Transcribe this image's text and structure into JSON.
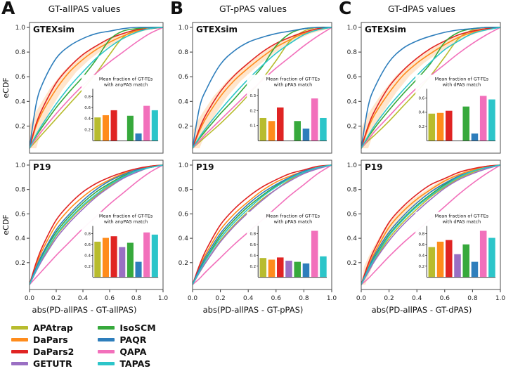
{
  "chart_data": {
    "type": "line",
    "description": "eCDF curves with inset bar charts, 3 panels x 2 datasets",
    "ylabel": "eCDF",
    "y_ticks": [
      0.2,
      0.4,
      0.6,
      0.8,
      1.0
    ],
    "x_ticks": [
      0.0,
      0.2,
      0.4,
      0.6,
      0.8,
      1.0
    ],
    "x_grid": [
      0,
      0.05,
      0.1,
      0.2,
      0.3,
      0.4,
      0.5,
      0.6,
      0.7,
      0.8,
      0.9,
      1.0
    ],
    "methods": [
      "APAtrap",
      "DaPars",
      "DaPars2",
      "GETUTR",
      "IsoSCM",
      "PAQR",
      "QAPA",
      "TAPAS"
    ],
    "colors": {
      "APAtrap": "#b8bc2e",
      "DaPars": "#ff8c1c",
      "DaPars2": "#e02423",
      "GETUTR": "#9a6fc3",
      "IsoSCM": "#37a93c",
      "PAQR": "#2e7ebc",
      "QAPA": "#f270bb",
      "TAPAS": "#2cc5c9"
    },
    "panels": [
      {
        "letter": "A",
        "title": "GT-allPAS values",
        "xlabel": "abs(PD-allPAS - GT-allPAS)",
        "subplots": [
          {
            "dataset": "GTEXsim",
            "inset": {
              "type": "bar",
              "title": [
                "Mean fraction of GT-TEs",
                "with anyPAS match"
              ],
              "ylim": [
                0,
                0.9
              ],
              "yticks": [
                0.2,
                0.4,
                0.6,
                0.8
              ],
              "values": [
                0.42,
                0.46,
                0.55,
                null,
                0.45,
                0.13,
                0.63,
                0.55
              ]
            },
            "bands": {
              "DaPars": 0.05
            },
            "series": {
              "APAtrap": [
                0.02,
                0.08,
                0.14,
                0.26,
                0.38,
                0.5,
                0.63,
                0.78,
                0.92,
                0.98,
                1,
                1
              ],
              "DaPars": [
                0.02,
                0.2,
                0.32,
                0.5,
                0.64,
                0.74,
                0.82,
                0.88,
                0.93,
                0.97,
                0.99,
                1
              ],
              "DaPars2": [
                0.02,
                0.22,
                0.35,
                0.55,
                0.68,
                0.78,
                0.85,
                0.91,
                0.95,
                0.98,
                0.99,
                1
              ],
              "IsoSCM": [
                0.02,
                0.12,
                0.2,
                0.35,
                0.48,
                0.6,
                0.74,
                0.9,
                0.97,
                0.99,
                1,
                1
              ],
              "PAQR": [
                0.02,
                0.38,
                0.55,
                0.75,
                0.85,
                0.91,
                0.95,
                0.97,
                0.99,
                1,
                1,
                1
              ],
              "QAPA": [
                0.02,
                0.1,
                0.17,
                0.3,
                0.42,
                0.53,
                0.63,
                0.72,
                0.8,
                0.88,
                0.95,
                1
              ],
              "TAPAS": [
                0.02,
                0.13,
                0.22,
                0.38,
                0.52,
                0.64,
                0.75,
                0.84,
                0.91,
                0.96,
                0.99,
                1
              ]
            }
          },
          {
            "dataset": "P19",
            "inset": {
              "type": "bar",
              "title": [
                "Mean fraction of GT-TEs",
                "with anyPAS match"
              ],
              "ylim": [
                0,
                0.9
              ],
              "yticks": [
                0.2,
                0.4,
                0.6,
                0.8
              ],
              "values": [
                0.65,
                0.72,
                0.75,
                0.55,
                0.63,
                0.28,
                0.82,
                0.78
              ]
            },
            "bands": {},
            "series": {
              "APAtrap": [
                0.02,
                0.14,
                0.24,
                0.42,
                0.55,
                0.66,
                0.75,
                0.83,
                0.9,
                0.95,
                0.98,
                1
              ],
              "DaPars": [
                0.02,
                0.18,
                0.31,
                0.51,
                0.64,
                0.74,
                0.82,
                0.88,
                0.93,
                0.96,
                0.99,
                1
              ],
              "DaPars2": [
                0.02,
                0.2,
                0.34,
                0.55,
                0.68,
                0.78,
                0.85,
                0.9,
                0.94,
                0.97,
                0.99,
                1
              ],
              "GETUTR": [
                0.02,
                0.13,
                0.23,
                0.4,
                0.53,
                0.64,
                0.74,
                0.82,
                0.89,
                0.94,
                0.98,
                1
              ],
              "IsoSCM": [
                0.02,
                0.15,
                0.27,
                0.45,
                0.58,
                0.69,
                0.78,
                0.85,
                0.91,
                0.95,
                0.98,
                1
              ],
              "PAQR": [
                0.02,
                0.16,
                0.28,
                0.47,
                0.6,
                0.71,
                0.8,
                0.87,
                0.92,
                0.96,
                0.98,
                1
              ],
              "QAPA": [
                0.02,
                0.08,
                0.14,
                0.26,
                0.37,
                0.48,
                0.58,
                0.68,
                0.77,
                0.86,
                0.94,
                1
              ],
              "TAPAS": [
                0.02,
                0.14,
                0.25,
                0.43,
                0.56,
                0.67,
                0.76,
                0.84,
                0.9,
                0.95,
                0.98,
                1
              ]
            }
          }
        ]
      },
      {
        "letter": "B",
        "title": "GT-pPAS values",
        "xlabel": "abs(PD-allPAS - GT-pPAS)",
        "subplots": [
          {
            "dataset": "GTEXsim",
            "inset": {
              "type": "bar",
              "title": [
                "Mean fraction of GT-TEs",
                "with pPAS match"
              ],
              "ylim": [
                0,
                0.33
              ],
              "yticks": [
                0.1,
                0.2,
                0.3
              ],
              "values": [
                0.15,
                0.13,
                0.22,
                null,
                0.13,
                0.08,
                0.28,
                0.15
              ]
            },
            "bands": {
              "DaPars": 0.05
            },
            "series": {
              "APAtrap": [
                0.02,
                0.07,
                0.12,
                0.22,
                0.33,
                0.45,
                0.58,
                0.73,
                0.89,
                0.97,
                1,
                1
              ],
              "DaPars": [
                0.02,
                0.16,
                0.27,
                0.44,
                0.57,
                0.67,
                0.76,
                0.84,
                0.9,
                0.95,
                0.98,
                1
              ],
              "DaPars2": [
                0.02,
                0.18,
                0.3,
                0.48,
                0.61,
                0.71,
                0.8,
                0.87,
                0.92,
                0.96,
                0.99,
                1
              ],
              "IsoSCM": [
                0.02,
                0.1,
                0.17,
                0.3,
                0.42,
                0.55,
                0.68,
                0.85,
                0.95,
                0.99,
                1,
                1
              ],
              "PAQR": [
                0.02,
                0.35,
                0.5,
                0.7,
                0.81,
                0.88,
                0.92,
                0.95,
                0.97,
                0.99,
                1,
                1
              ],
              "QAPA": [
                0.02,
                0.08,
                0.14,
                0.25,
                0.36,
                0.47,
                0.57,
                0.67,
                0.76,
                0.85,
                0.93,
                1
              ],
              "TAPAS": [
                0.02,
                0.11,
                0.19,
                0.33,
                0.46,
                0.58,
                0.69,
                0.79,
                0.87,
                0.94,
                0.98,
                1
              ]
            }
          },
          {
            "dataset": "P19",
            "inset": {
              "type": "bar",
              "title": [
                "Mean fraction of GT-TEs",
                "with pPAS match"
              ],
              "ylim": [
                0,
                0.9
              ],
              "yticks": [
                0.2,
                0.4,
                0.6,
                0.8
              ],
              "values": [
                0.35,
                0.32,
                0.36,
                0.3,
                0.28,
                0.25,
                0.85,
                0.38
              ]
            },
            "bands": {},
            "series": {
              "APAtrap": [
                0.02,
                0.12,
                0.21,
                0.38,
                0.51,
                0.62,
                0.72,
                0.8,
                0.88,
                0.94,
                0.98,
                1
              ],
              "DaPars": [
                0.02,
                0.16,
                0.28,
                0.47,
                0.6,
                0.7,
                0.79,
                0.86,
                0.91,
                0.95,
                0.98,
                1
              ],
              "DaPars2": [
                0.02,
                0.18,
                0.31,
                0.51,
                0.64,
                0.74,
                0.82,
                0.88,
                0.93,
                0.96,
                0.99,
                1
              ],
              "GETUTR": [
                0.02,
                0.12,
                0.21,
                0.37,
                0.5,
                0.61,
                0.71,
                0.8,
                0.87,
                0.93,
                0.97,
                1
              ],
              "IsoSCM": [
                0.02,
                0.14,
                0.24,
                0.42,
                0.55,
                0.66,
                0.75,
                0.83,
                0.89,
                0.94,
                0.98,
                1
              ],
              "PAQR": [
                0.02,
                0.15,
                0.26,
                0.44,
                0.57,
                0.68,
                0.77,
                0.84,
                0.9,
                0.95,
                0.98,
                1
              ],
              "QAPA": [
                0.02,
                0.07,
                0.13,
                0.24,
                0.35,
                0.45,
                0.55,
                0.65,
                0.75,
                0.84,
                0.93,
                1
              ],
              "TAPAS": [
                0.02,
                0.13,
                0.23,
                0.4,
                0.53,
                0.64,
                0.74,
                0.82,
                0.89,
                0.94,
                0.98,
                1
              ]
            }
          }
        ]
      },
      {
        "letter": "C",
        "title": "GT-dPAS values",
        "xlabel": "abs(PD-allPAS - GT-dPAS)",
        "subplots": [
          {
            "dataset": "GTEXsim",
            "inset": {
              "type": "bar",
              "title": [
                "Mean fraction of GT-TEs",
                "with dPAS match"
              ],
              "ylim": [
                0,
                0.7
              ],
              "yticks": [
                0.2,
                0.4,
                0.6
              ],
              "values": [
                0.38,
                0.39,
                0.42,
                null,
                0.48,
                0.1,
                0.63,
                0.58
              ]
            },
            "bands": {
              "DaPars": 0.05
            },
            "series": {
              "APAtrap": [
                0.02,
                0.08,
                0.13,
                0.24,
                0.36,
                0.48,
                0.61,
                0.76,
                0.91,
                0.98,
                1,
                1
              ],
              "DaPars": [
                0.02,
                0.18,
                0.3,
                0.47,
                0.61,
                0.71,
                0.79,
                0.86,
                0.92,
                0.96,
                0.99,
                1
              ],
              "DaPars2": [
                0.02,
                0.2,
                0.33,
                0.52,
                0.65,
                0.75,
                0.83,
                0.89,
                0.94,
                0.97,
                0.99,
                1
              ],
              "IsoSCM": [
                0.02,
                0.11,
                0.19,
                0.33,
                0.46,
                0.58,
                0.71,
                0.88,
                0.96,
                0.99,
                1,
                1
              ],
              "PAQR": [
                0.02,
                0.36,
                0.52,
                0.72,
                0.83,
                0.89,
                0.93,
                0.96,
                0.98,
                0.99,
                1,
                1
              ],
              "QAPA": [
                0.02,
                0.09,
                0.16,
                0.28,
                0.4,
                0.51,
                0.61,
                0.7,
                0.79,
                0.87,
                0.94,
                1
              ],
              "TAPAS": [
                0.02,
                0.12,
                0.21,
                0.36,
                0.49,
                0.61,
                0.72,
                0.82,
                0.89,
                0.95,
                0.98,
                1
              ]
            }
          },
          {
            "dataset": "P19",
            "inset": {
              "type": "bar",
              "title": [
                "Mean fraction of GT-TEs",
                "with dPAS match"
              ],
              "ylim": [
                0,
                0.9
              ],
              "yticks": [
                0.2,
                0.4,
                0.6,
                0.8
              ],
              "values": [
                0.55,
                0.65,
                0.68,
                0.42,
                0.6,
                0.28,
                0.85,
                0.72
              ]
            },
            "bands": {
              "DaPars": 0.03
            },
            "series": {
              "APAtrap": [
                0.02,
                0.13,
                0.23,
                0.4,
                0.53,
                0.64,
                0.74,
                0.82,
                0.89,
                0.94,
                0.98,
                1
              ],
              "DaPars": [
                0.02,
                0.17,
                0.29,
                0.49,
                0.62,
                0.72,
                0.8,
                0.87,
                0.92,
                0.96,
                0.99,
                1
              ],
              "DaPars2": [
                0.02,
                0.19,
                0.32,
                0.53,
                0.66,
                0.76,
                0.84,
                0.89,
                0.94,
                0.97,
                0.99,
                1
              ],
              "GETUTR": [
                0.02,
                0.12,
                0.22,
                0.38,
                0.51,
                0.62,
                0.72,
                0.81,
                0.88,
                0.93,
                0.97,
                1
              ],
              "IsoSCM": [
                0.02,
                0.14,
                0.25,
                0.43,
                0.56,
                0.67,
                0.76,
                0.84,
                0.9,
                0.95,
                0.98,
                1
              ],
              "PAQR": [
                0.02,
                0.15,
                0.27,
                0.45,
                0.58,
                0.69,
                0.78,
                0.85,
                0.91,
                0.95,
                0.98,
                1
              ],
              "QAPA": [
                0.02,
                0.07,
                0.13,
                0.25,
                0.36,
                0.46,
                0.56,
                0.66,
                0.76,
                0.85,
                0.93,
                1
              ],
              "TAPAS": [
                0.02,
                0.14,
                0.24,
                0.42,
                0.55,
                0.66,
                0.75,
                0.83,
                0.9,
                0.95,
                0.98,
                1
              ]
            }
          }
        ]
      }
    ]
  }
}
